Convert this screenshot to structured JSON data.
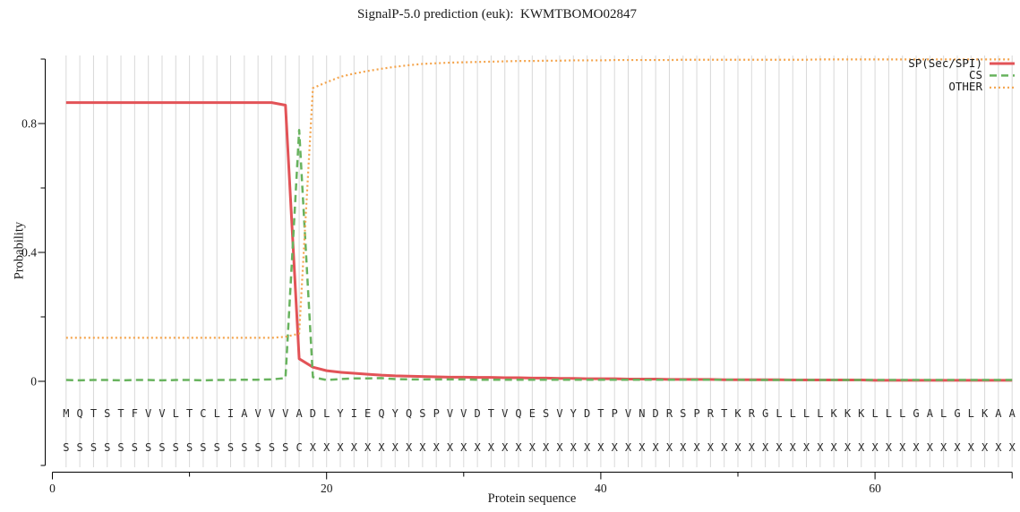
{
  "figure": {
    "title": "SignalP-5.0 prediction (euk):  KWMTBOMO02847",
    "ylabel": "Probability",
    "xlabel": "Protein sequence"
  },
  "legend": {
    "position": "top-right",
    "items": [
      {
        "label": "SP(Sec/SPI)",
        "color": "#e25357",
        "dash": "",
        "width": 3
      },
      {
        "label": "CS",
        "color": "#68b35e",
        "dash": "8 5",
        "width": 2.5
      },
      {
        "label": "OTHER",
        "color": "#f4a44c",
        "dash": "2 3",
        "width": 2.2
      }
    ]
  },
  "axes": {
    "y": {
      "ticks_major": [
        0,
        0.4,
        0.8
      ],
      "ticks_minor": [
        0.2,
        0.6,
        1.0
      ],
      "tick_labels": [
        "0",
        "0.4",
        "0.8"
      ]
    },
    "x": {
      "ticks_major": [
        0,
        20,
        40,
        60
      ],
      "ticks_minor": [
        10,
        30,
        50
      ],
      "tick_labels": [
        "0",
        "20",
        "40",
        "60"
      ],
      "end": 70
    }
  },
  "sequence": {
    "residues": "MQTSTFVVLTCLIAVVVADLYIEQYQSPVVDTVQESVYDTPVNDRSPRTKRGLLLLKKKLLLGALGLKAA",
    "annotation": "SSSSSSSSSSSSSSSSSCXXXXXXXXXXXXXXXXXXXXXXXXXXXXXXXXXXXXXXXXXXXXXXXXXXXX"
  },
  "colors": {
    "grid": "#d8d8d8",
    "axis": "#000000",
    "tick_text": "#1a1a1a",
    "sequence_text": "#2b2b2b",
    "background": "#ffffff"
  },
  "chart_data": {
    "type": "line",
    "title": "SignalP-5.0 prediction (euk):  KWMTBOMO02847",
    "xlabel": "Protein sequence",
    "ylabel": "Probability",
    "xlim": [
      0,
      70
    ],
    "ylim": [
      0,
      1.05
    ],
    "grid": "vertical line at every residue position 1-70",
    "legend_position": "top-right",
    "x_start": 1,
    "x_step": 1,
    "series": [
      {
        "name": "SP(Sec/SPI)",
        "color": "#e25357",
        "dash": "",
        "width": 3,
        "values": [
          0.865,
          0.865,
          0.865,
          0.865,
          0.865,
          0.865,
          0.865,
          0.865,
          0.865,
          0.865,
          0.865,
          0.865,
          0.865,
          0.865,
          0.865,
          0.865,
          0.857,
          0.07,
          0.044,
          0.033,
          0.028,
          0.025,
          0.022,
          0.019,
          0.017,
          0.016,
          0.015,
          0.014,
          0.013,
          0.013,
          0.012,
          0.012,
          0.011,
          0.011,
          0.01,
          0.01,
          0.009,
          0.009,
          0.008,
          0.008,
          0.008,
          0.007,
          0.007,
          0.007,
          0.006,
          0.006,
          0.006,
          0.006,
          0.005,
          0.005,
          0.005,
          0.005,
          0.005,
          0.004,
          0.004,
          0.004,
          0.004,
          0.004,
          0.004,
          0.003,
          0.003,
          0.003,
          0.003,
          0.003,
          0.003,
          0.003,
          0.003,
          0.003,
          0.003,
          0.003
        ]
      },
      {
        "name": "CS",
        "color": "#68b35e",
        "dash": "8 5",
        "width": 2.5,
        "values": [
          0.004,
          0.003,
          0.004,
          0.004,
          0.003,
          0.004,
          0.004,
          0.003,
          0.004,
          0.004,
          0.003,
          0.004,
          0.004,
          0.005,
          0.005,
          0.006,
          0.01,
          0.78,
          0.013,
          0.004,
          0.007,
          0.009,
          0.009,
          0.01,
          0.007,
          0.006,
          0.006,
          0.006,
          0.006,
          0.006,
          0.005,
          0.005,
          0.005,
          0.005,
          0.005,
          0.005,
          0.005,
          0.005,
          0.005,
          0.005,
          0.005,
          0.005,
          0.005,
          0.005,
          0.005,
          0.005,
          0.005,
          0.005,
          0.005,
          0.005,
          0.004,
          0.004,
          0.004,
          0.004,
          0.004,
          0.004,
          0.004,
          0.004,
          0.004,
          0.004,
          0.004,
          0.004,
          0.004,
          0.004,
          0.004,
          0.004,
          0.004,
          0.004,
          0.004,
          0.004
        ]
      },
      {
        "name": "OTHER",
        "color": "#f4a44c",
        "dash": "2 3",
        "width": 2.2,
        "values": [
          0.135,
          0.135,
          0.135,
          0.135,
          0.135,
          0.135,
          0.135,
          0.135,
          0.135,
          0.135,
          0.135,
          0.135,
          0.135,
          0.135,
          0.135,
          0.135,
          0.138,
          0.148,
          0.91,
          0.928,
          0.945,
          0.955,
          0.963,
          0.97,
          0.976,
          0.981,
          0.985,
          0.987,
          0.989,
          0.99,
          0.991,
          0.992,
          0.993,
          0.994,
          0.994,
          0.995,
          0.995,
          0.996,
          0.996,
          0.996,
          0.997,
          0.997,
          0.997,
          0.997,
          0.997,
          0.998,
          0.998,
          0.998,
          0.998,
          0.998,
          0.998,
          0.998,
          0.998,
          0.998,
          0.998,
          0.999,
          0.999,
          0.999,
          0.999,
          0.999,
          0.999,
          0.999,
          0.999,
          0.999,
          0.999,
          0.999,
          0.999,
          0.999,
          0.999,
          0.999
        ]
      }
    ]
  }
}
